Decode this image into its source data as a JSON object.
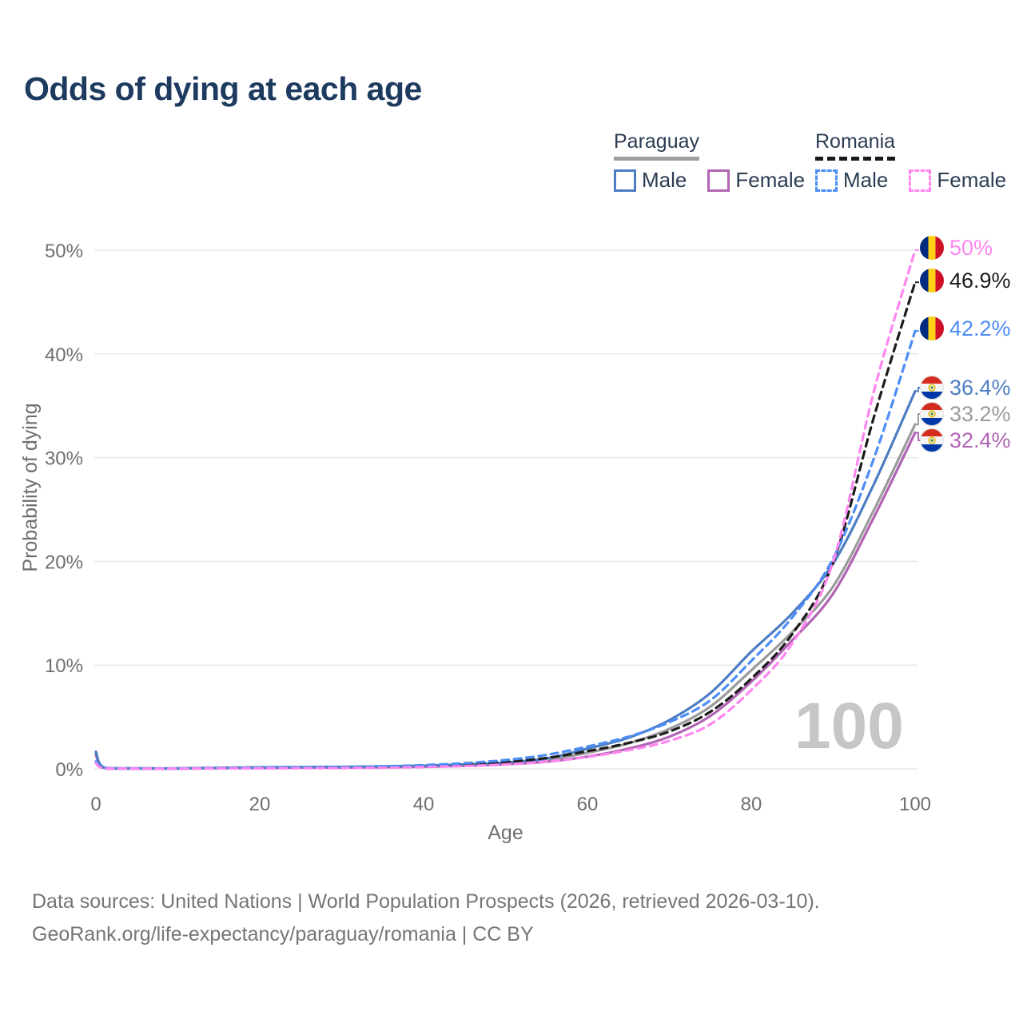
{
  "title": "Odds of dying at each age",
  "legend": {
    "groups": [
      {
        "country": "Paraguay",
        "style": "solid",
        "underline_color": "#9e9e9e",
        "male_label": "Male",
        "female_label": "Female",
        "male_color": "#4d7ec3",
        "female_color": "#b164b3"
      },
      {
        "country": "Romania",
        "style": "dashed",
        "underline_color": "#1a1a1a",
        "male_label": "Male",
        "female_label": "Female",
        "male_color": "#4c8df6",
        "female_color": "#ff86f1"
      }
    ]
  },
  "watermark": "100",
  "footer": {
    "line1": "Data sources: United Nations | World Population Prospects (2026, retrieved 2026-03-10).",
    "line2": "GeoRank.org/life-expectancy/paraguay/romania | CC BY"
  },
  "chart_data": {
    "type": "line",
    "title": "Odds of dying at each age",
    "xlabel": "Age",
    "ylabel": "Probability of dying",
    "unit": "%",
    "xlim": [
      0,
      100
    ],
    "ylim": [
      0,
      50
    ],
    "grid": "horizontal",
    "xticks": [
      "0",
      "20",
      "40",
      "60",
      "80",
      "100"
    ],
    "yticks": [
      "0%",
      "10%",
      "20%",
      "30%",
      "40%",
      "50%"
    ],
    "x_ages": [
      0,
      1,
      5,
      10,
      15,
      20,
      25,
      30,
      35,
      40,
      45,
      50,
      55,
      60,
      65,
      70,
      75,
      80,
      85,
      90,
      95,
      100
    ],
    "series": [
      {
        "id": "paraguay-both",
        "name": "Paraguay Both sexes",
        "country": "Paraguay",
        "sex": "both",
        "line_style": "solid",
        "color": "#9b9b9b",
        "label_color": "#9b9b9b",
        "flag": "paraguay",
        "end_label": "33.2%",
        "end_value": 33.2,
        "values": [
          1.5,
          0.1,
          0.04,
          0.04,
          0.08,
          0.11,
          0.13,
          0.15,
          0.18,
          0.24,
          0.35,
          0.52,
          0.82,
          1.55,
          2.45,
          3.85,
          6.0,
          9.5,
          13.2,
          17.6,
          25.0,
          33.2
        ]
      },
      {
        "id": "paraguay-female",
        "name": "Paraguay Female",
        "country": "Paraguay",
        "sex": "female",
        "line_style": "solid",
        "color": "#b164b3",
        "label_color": "#b164b3",
        "flag": "paraguay",
        "end_label": "32.4%",
        "end_value": 32.4,
        "values": [
          1.35,
          0.09,
          0.03,
          0.03,
          0.06,
          0.08,
          0.1,
          0.12,
          0.15,
          0.2,
          0.29,
          0.44,
          0.68,
          1.18,
          1.95,
          3.1,
          5.1,
          8.4,
          12.4,
          16.9,
          24.3,
          32.4
        ]
      },
      {
        "id": "paraguay-male",
        "name": "Paraguay Male",
        "country": "Paraguay",
        "sex": "male",
        "line_style": "solid",
        "color": "#4d7ec3",
        "label_color": "#4d7ec3",
        "flag": "paraguay",
        "end_label": "36.4%",
        "end_value": 36.4,
        "values": [
          1.65,
          0.12,
          0.05,
          0.05,
          0.1,
          0.15,
          0.17,
          0.19,
          0.23,
          0.3,
          0.42,
          0.62,
          1.0,
          1.95,
          3.0,
          4.7,
          7.3,
          11.3,
          15.0,
          19.8,
          27.5,
          36.4
        ]
      },
      {
        "id": "romania-both",
        "name": "Romania Both sexes",
        "country": "Romania",
        "sex": "both",
        "line_style": "dashed",
        "color": "#1c1c1c",
        "label_color": "#1c1c1c",
        "flag": "romania",
        "end_label": "46.9%",
        "end_value": 46.9,
        "values": [
          0.62,
          0.05,
          0.03,
          0.03,
          0.06,
          0.09,
          0.11,
          0.13,
          0.18,
          0.26,
          0.42,
          0.66,
          1.05,
          1.7,
          2.5,
          3.6,
          5.5,
          8.7,
          13.0,
          19.9,
          34.0,
          46.9
        ]
      },
      {
        "id": "romania-male",
        "name": "Romania Male",
        "country": "Romania",
        "sex": "male",
        "line_style": "dashed",
        "color": "#4c8df6",
        "label_color": "#4c8df6",
        "flag": "romania",
        "end_label": "42.2%",
        "end_value": 42.2,
        "values": [
          0.7,
          0.06,
          0.03,
          0.03,
          0.07,
          0.12,
          0.15,
          0.18,
          0.25,
          0.36,
          0.55,
          0.85,
          1.35,
          2.15,
          3.1,
          4.5,
          6.6,
          10.4,
          14.6,
          20.3,
          30.0,
          42.2
        ]
      },
      {
        "id": "romania-female",
        "name": "Romania Female",
        "country": "Romania",
        "sex": "female",
        "line_style": "dashed",
        "color": "#ff86f1",
        "label_color": "#ff86f1",
        "flag": "romania",
        "end_label": "50%",
        "end_value": 50.0,
        "values": [
          0.55,
          0.04,
          0.02,
          0.02,
          0.04,
          0.05,
          0.06,
          0.08,
          0.11,
          0.17,
          0.27,
          0.43,
          0.7,
          1.15,
          1.8,
          2.7,
          4.3,
          7.6,
          12.1,
          20.0,
          36.5,
          50.0
        ]
      }
    ]
  }
}
